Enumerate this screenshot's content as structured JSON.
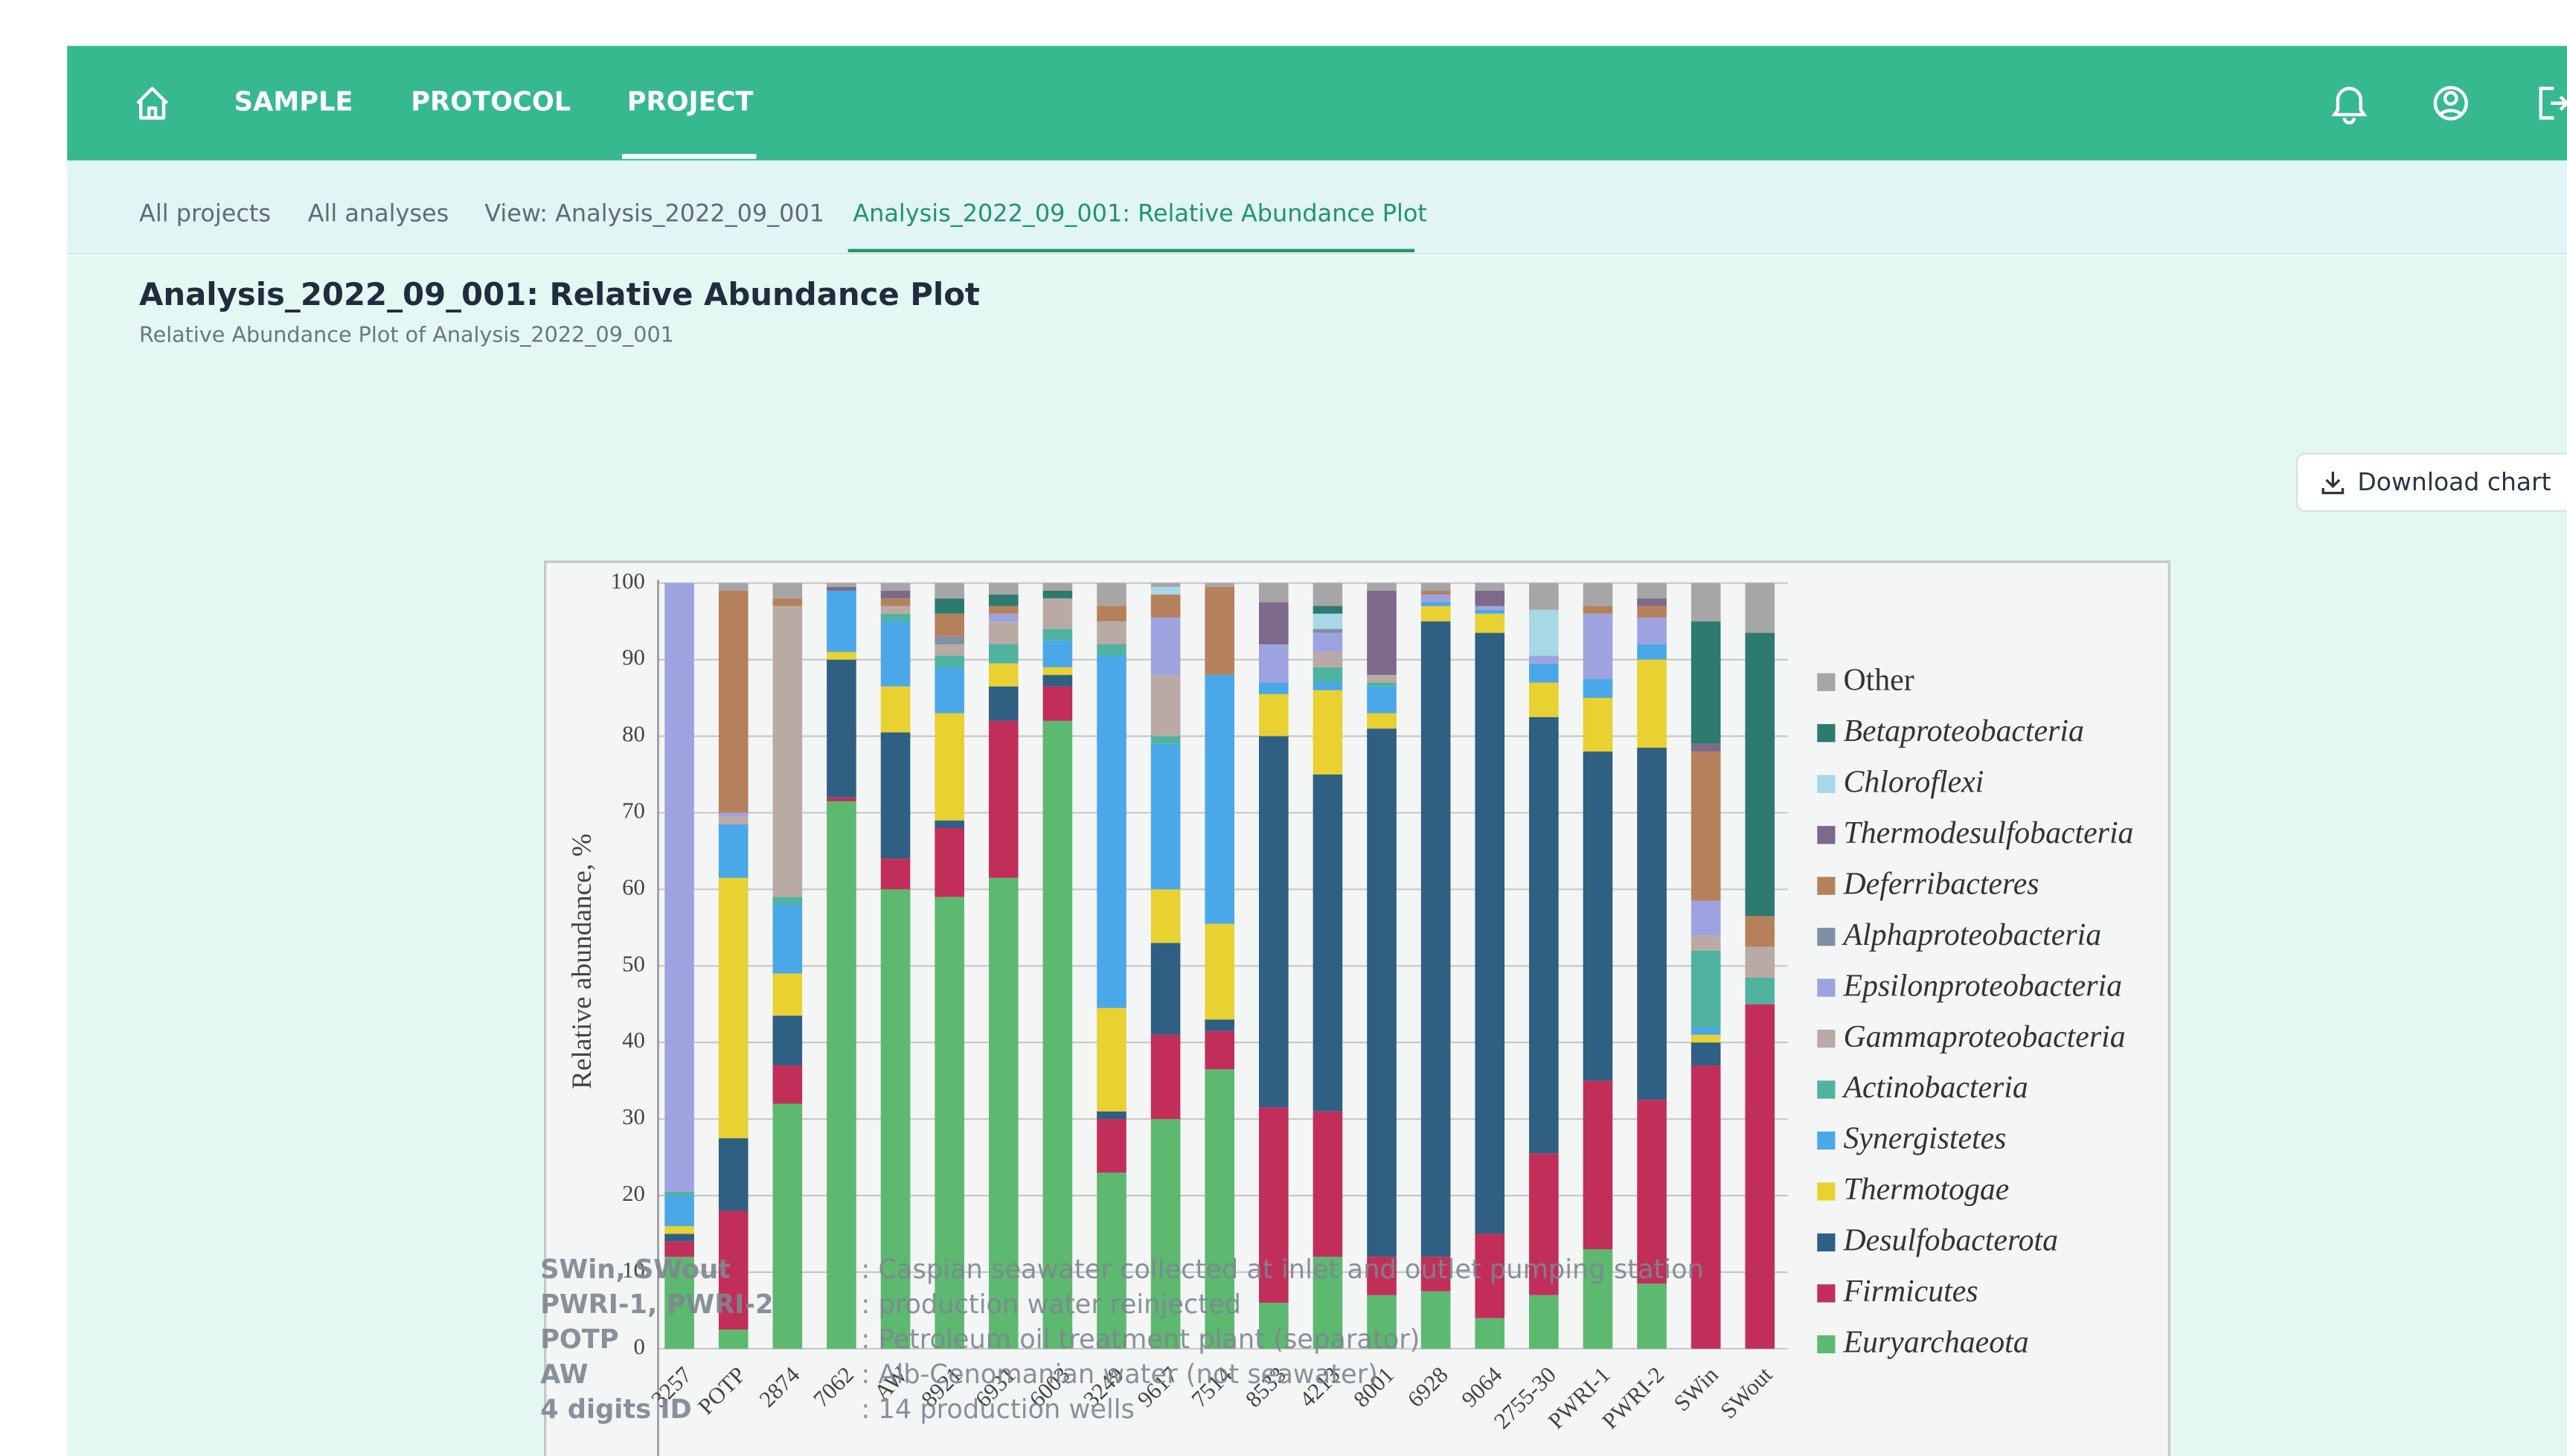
{
  "nav": {
    "items": [
      "SAMPLE",
      "PROTOCOL",
      "PROJECT"
    ],
    "active": 2
  },
  "breadcrumbs": {
    "items": [
      "All projects",
      "All analyses",
      "View: Analysis_2022_09_001",
      "Analysis_2022_09_001: Relative Abundance Plot"
    ],
    "active": 3
  },
  "header": {
    "title": "Analysis_2022_09_001: Relative Abundance Plot",
    "subtitle": "Relative Abundance Plot of Analysis_2022_09_001"
  },
  "download_button": "Download chart",
  "chart_data": {
    "type": "stacked_bar",
    "ylabel": "Relative abundance, %",
    "ylim": [
      0,
      100
    ],
    "yticks": [
      0,
      10,
      20,
      30,
      40,
      50,
      60,
      70,
      80,
      90,
      100
    ],
    "grid": true,
    "categories": [
      "3257",
      "POTP",
      "2874",
      "7062",
      "AW",
      "8921",
      "6931",
      "6003",
      "3249",
      "9617",
      "7514",
      "8533",
      "4213",
      "8001",
      "6928",
      "9064",
      "2755-30",
      "PWRI-1",
      "PWRI-2",
      "SWin",
      "SWout"
    ],
    "series": [
      {
        "name": "Euryarchaeota",
        "color": "#5db870",
        "italic": true,
        "values": [
          12,
          2.5,
          32,
          71.5,
          60,
          59,
          61.5,
          82,
          23,
          30,
          36.5,
          6,
          12,
          7,
          7.5,
          4,
          7,
          13,
          8.5,
          0,
          0
        ]
      },
      {
        "name": "Firmicutes",
        "color": "#c22e5a",
        "italic": true,
        "values": [
          2,
          15.5,
          5,
          0.5,
          4,
          9,
          20.5,
          4.5,
          7,
          11,
          5,
          25.5,
          19,
          5,
          4.5,
          11,
          18.5,
          22,
          24,
          37,
          45
        ]
      },
      {
        "name": "Desulfobacterota",
        "color": "#2f5f82",
        "italic": true,
        "values": [
          1,
          9.5,
          6.5,
          18,
          16.5,
          1,
          4.5,
          1.5,
          1,
          12,
          1.5,
          48.5,
          44,
          69,
          83,
          78.5,
          57,
          43,
          46,
          3,
          0
        ]
      },
      {
        "name": "Thermotogae",
        "color": "#e8d130",
        "italic": true,
        "values": [
          1,
          34,
          5.5,
          1,
          6,
          14,
          3,
          1,
          13.5,
          7,
          12.5,
          5.5,
          11,
          2,
          2,
          2.5,
          4.5,
          7,
          11.5,
          1,
          0
        ]
      },
      {
        "name": "Synergistetes",
        "color": "#4aa8e8",
        "italic": true,
        "values": [
          4,
          7,
          9,
          8,
          8.5,
          6,
          0,
          3.5,
          46,
          19,
          32.5,
          1.5,
          1,
          3.5,
          0.5,
          0.5,
          2.5,
          2.5,
          2,
          1,
          0
        ]
      },
      {
        "name": "Actinobacteria",
        "color": "#4fb3a0",
        "italic": true,
        "values": [
          0.5,
          0,
          1,
          0,
          1,
          1.5,
          2.5,
          1.5,
          1.5,
          1,
          0,
          0,
          2,
          0.5,
          0,
          0,
          0,
          0,
          0,
          10,
          3.5
        ]
      },
      {
        "name": "Gammaproteobacteria",
        "color": "#b9aaa6",
        "italic": true,
        "values": [
          0,
          1,
          38,
          0,
          1,
          1.5,
          3,
          4,
          3,
          8,
          0,
          0,
          2,
          1,
          0,
          0,
          0,
          0,
          0,
          2,
          4
        ]
      },
      {
        "name": "Epsilonproteobacteria",
        "color": "#9ea3e0",
        "italic": true,
        "values": [
          79.5,
          0.5,
          0,
          0,
          0,
          0,
          1,
          0,
          0,
          7.5,
          0,
          5,
          2.5,
          0,
          1,
          0.5,
          1,
          8.5,
          3.5,
          4.5,
          0
        ]
      },
      {
        "name": "Alphaproteobacteria",
        "color": "#7f8fa6",
        "italic": true,
        "values": [
          0,
          0,
          0,
          0,
          0,
          1,
          0,
          0,
          0,
          0,
          0,
          0,
          0.5,
          0,
          0,
          0,
          0,
          0,
          0,
          0,
          0
        ]
      },
      {
        "name": "Deferribacteres",
        "color": "#b5815c",
        "italic": true,
        "values": [
          0,
          29,
          1,
          0,
          1,
          3,
          1,
          0,
          2,
          3,
          11.5,
          0,
          0,
          0,
          0.5,
          0,
          0,
          1,
          1.5,
          19.5,
          4
        ]
      },
      {
        "name": "Thermodesulfobacteria",
        "color": "#7d6a8a",
        "italic": true,
        "values": [
          0,
          0,
          0,
          0.5,
          1,
          0,
          0,
          0,
          0,
          0,
          0,
          5.5,
          0,
          11,
          0,
          2,
          0,
          0,
          1,
          1,
          0
        ]
      },
      {
        "name": "Chloroflexi",
        "color": "#a8d8e6",
        "italic": true,
        "values": [
          0,
          0,
          0,
          0,
          0,
          0,
          0,
          0,
          0,
          1,
          0,
          0,
          2,
          0,
          0,
          0,
          6,
          0,
          0,
          0,
          0
        ]
      },
      {
        "name": "Betaproteobacteria",
        "color": "#2e7a6e",
        "italic": true,
        "values": [
          0,
          0,
          0,
          0,
          0,
          2,
          1.5,
          1,
          0,
          0,
          0,
          0,
          1,
          0,
          0,
          0,
          0,
          0,
          0,
          16,
          37
        ]
      },
      {
        "name": "Other",
        "color": "#a6a6a6",
        "italic": false,
        "values": [
          0,
          1,
          2,
          0.5,
          1,
          2,
          1.5,
          1,
          3,
          0.5,
          0.5,
          2.5,
          3,
          1,
          1,
          1,
          3.5,
          3,
          2,
          5,
          6.5
        ]
      }
    ],
    "annotations": [
      {
        "key": "SWin, SWout",
        "text": ": Caspian seawater collected at inlet and outlet pumping station"
      },
      {
        "key": "PWRI-1, PWRI-2",
        "text": ": production water reinjected"
      },
      {
        "key": "POTP",
        "text": ": Petroleum oil treatment plant (separator)"
      },
      {
        "key": "AW",
        "text": ": Alb-Cenomanian water (not seawater)"
      },
      {
        "key": "4 digits ID",
        "text": ": 14 production wells"
      }
    ]
  }
}
